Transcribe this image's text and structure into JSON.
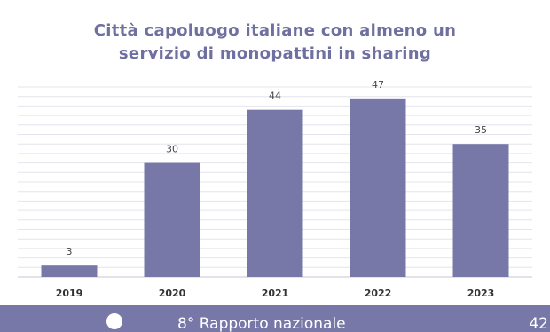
{
  "chart_data": {
    "type": "bar",
    "title_lines": [
      "Città capoluogo italiane con almeno un",
      "servizio di monopattini in sharing"
    ],
    "categories": [
      "2019",
      "2020",
      "2021",
      "2022",
      "2023"
    ],
    "values": [
      3,
      30,
      44,
      47,
      35
    ],
    "data_labels": [
      "3",
      "30",
      "44",
      "47",
      "35"
    ],
    "ylim": [
      0,
      50
    ],
    "grid": true,
    "legend": "none",
    "colors": {
      "bar": "#7878a8",
      "gridline": "#e4e4ec",
      "axis": "#c4c4d4",
      "label": "#444444",
      "tick": "#333333"
    }
  },
  "footer": {
    "text": "8° Rapporto nazionale",
    "page_number": "42",
    "color": "#7878a8"
  }
}
